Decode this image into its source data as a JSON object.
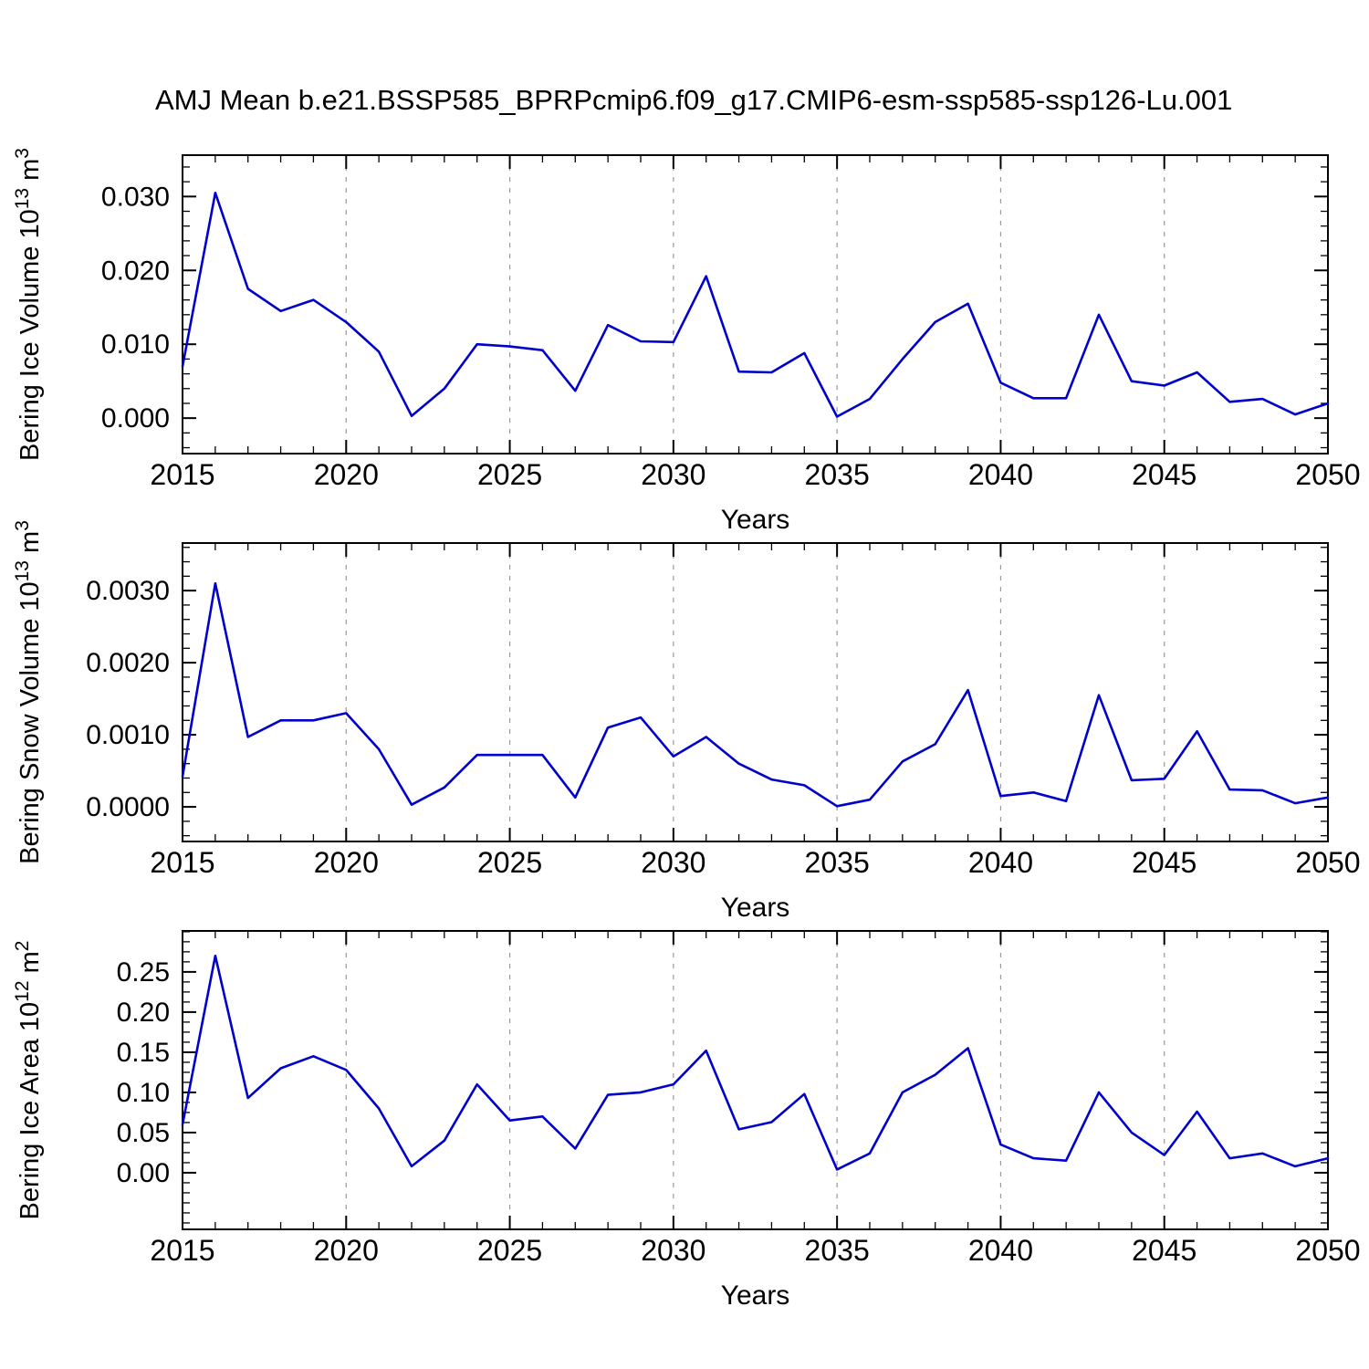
{
  "title": "AMJ Mean b.e21.BSSP585_BPRPcmip6.f09_g17.CMIP6-esm-ssp585-ssp126-Lu.001",
  "xlabel": "Years",
  "line_color": "#0000CC",
  "gridline_color": "#999999",
  "years": [
    2015,
    2016,
    2017,
    2018,
    2019,
    2020,
    2021,
    2022,
    2023,
    2024,
    2025,
    2026,
    2027,
    2028,
    2029,
    2030,
    2031,
    2032,
    2033,
    2034,
    2035,
    2036,
    2037,
    2038,
    2039,
    2040,
    2041,
    2042,
    2043,
    2044,
    2045,
    2046,
    2047,
    2048,
    2049,
    2050
  ],
  "x_major_ticks": [
    2015,
    2020,
    2025,
    2030,
    2035,
    2040,
    2045,
    2050
  ],
  "x_minor_step": 1,
  "gridlines_x": [
    2020,
    2025,
    2030,
    2035,
    2040,
    2045
  ],
  "chart_data": [
    {
      "type": "line",
      "name": "bering-ice-volume",
      "ylabel_plain": "Bering Ice Volume 10^13 m^3",
      "ylabel_parts": [
        {
          "t": "Bering Ice Volume 10"
        },
        {
          "t": "13",
          "sup": true
        },
        {
          "t": " m"
        },
        {
          "t": "3",
          "sup": true
        }
      ],
      "xlabel": "Years",
      "values": [
        0.007,
        0.0305,
        0.0175,
        0.0145,
        0.016,
        0.013,
        0.009,
        0.0003,
        0.004,
        0.01,
        0.0097,
        0.0092,
        0.0037,
        0.0126,
        0.0104,
        0.0103,
        0.0192,
        0.0063,
        0.0062,
        0.0088,
        0.0002,
        0.0026,
        0.008,
        0.013,
        0.0155,
        0.0048,
        0.0027,
        0.0027,
        0.014,
        0.005,
        0.0044,
        0.0062,
        0.0022,
        0.0026,
        0.0005,
        0.002
      ],
      "ylim": [
        -0.0048,
        0.0356
      ],
      "yticks": [
        {
          "v": 0,
          "label": "0.000"
        },
        {
          "v": 0.01,
          "label": "0.010"
        },
        {
          "v": 0.02,
          "label": "0.020"
        },
        {
          "v": 0.03,
          "label": "0.030"
        }
      ],
      "y_minor_step": 0.002
    },
    {
      "type": "line",
      "name": "bering-snow-volume",
      "ylabel_plain": "Bering Snow Volume 10^13 m^3",
      "ylabel_parts": [
        {
          "t": "Bering Snow Volume 10"
        },
        {
          "t": "13",
          "sup": true
        },
        {
          "t": " m"
        },
        {
          "t": "3",
          "sup": true
        }
      ],
      "xlabel": "Years",
      "values": [
        0.00042,
        0.0031,
        0.00097,
        0.0012,
        0.0012,
        0.0013,
        0.0008,
        3e-05,
        0.00027,
        0.00072,
        0.00072,
        0.00072,
        0.00013,
        0.0011,
        0.00124,
        0.0007,
        0.00097,
        0.0006,
        0.00038,
        0.0003,
        1e-05,
        0.0001,
        0.00063,
        0.00087,
        0.00162,
        0.00015,
        0.0002,
        8e-05,
        0.00155,
        0.00037,
        0.00039,
        0.00105,
        0.00024,
        0.00023,
        5e-05,
        0.00013
      ],
      "ylim": [
        -0.00048,
        0.00366
      ],
      "yticks": [
        {
          "v": 0,
          "label": "0.0000"
        },
        {
          "v": 0.001,
          "label": "0.0010"
        },
        {
          "v": 0.002,
          "label": "0.0020"
        },
        {
          "v": 0.003,
          "label": "0.0030"
        }
      ],
      "y_minor_step": 0.0002
    },
    {
      "type": "line",
      "name": "bering-ice-area",
      "ylabel_plain": "Bering Ice Area 10^12 m^2",
      "ylabel_parts": [
        {
          "t": "Bering Ice Area 10"
        },
        {
          "t": "12",
          "sup": true
        },
        {
          "t": " m"
        },
        {
          "t": "2",
          "sup": true
        }
      ],
      "xlabel": "Years",
      "values": [
        0.06,
        0.27,
        0.093,
        0.13,
        0.145,
        0.128,
        0.08,
        0.008,
        0.04,
        0.11,
        0.065,
        0.07,
        0.03,
        0.097,
        0.1,
        0.11,
        0.152,
        0.054,
        0.063,
        0.098,
        0.004,
        0.024,
        0.1,
        0.122,
        0.155,
        0.035,
        0.018,
        0.015,
        0.1,
        0.05,
        0.022,
        0.076,
        0.018,
        0.024,
        0.008,
        0.018
      ],
      "ylim": [
        -0.0705,
        0.301
      ],
      "yticks": [
        {
          "v": 0,
          "label": "0.00"
        },
        {
          "v": 0.05,
          "label": "0.05"
        },
        {
          "v": 0.1,
          "label": "0.10"
        },
        {
          "v": 0.15,
          "label": "0.15"
        },
        {
          "v": 0.2,
          "label": "0.20"
        },
        {
          "v": 0.25,
          "label": "0.25"
        }
      ],
      "y_minor_step": 0.0125
    }
  ]
}
